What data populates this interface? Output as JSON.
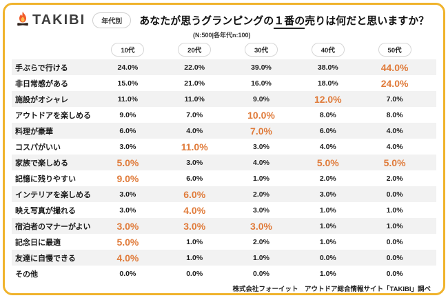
{
  "header": {
    "logo_text": "TAKIBI",
    "badge": "年代別",
    "title_prefix": "あなたが思うグランピングの",
    "title_underline": "１番の",
    "title_suffix": "売りは何だと思いますか？",
    "subtitle": "(N:500|各年代n:100)"
  },
  "columns": [
    "10代",
    "20代",
    "30代",
    "40代",
    "50代"
  ],
  "rows": [
    {
      "label": "手ぶらで行ける",
      "values": [
        "24.0%",
        "22.0%",
        "39.0%",
        "38.0%",
        "44.0%"
      ],
      "highlight": [
        false,
        false,
        false,
        false,
        true
      ]
    },
    {
      "label": "非日常感がある",
      "values": [
        "15.0%",
        "21.0%",
        "16.0%",
        "18.0%",
        "24.0%"
      ],
      "highlight": [
        false,
        false,
        false,
        false,
        true
      ]
    },
    {
      "label": "施設がオシャレ",
      "values": [
        "11.0%",
        "11.0%",
        "9.0%",
        "12.0%",
        "7.0%"
      ],
      "highlight": [
        false,
        false,
        false,
        true,
        false
      ]
    },
    {
      "label": "アウトドアを楽しめる",
      "values": [
        "9.0%",
        "7.0%",
        "10.0%",
        "8.0%",
        "8.0%"
      ],
      "highlight": [
        false,
        false,
        true,
        false,
        false
      ]
    },
    {
      "label": "料理が豪華",
      "values": [
        "6.0%",
        "4.0%",
        "7.0%",
        "6.0%",
        "4.0%"
      ],
      "highlight": [
        false,
        false,
        true,
        false,
        false
      ]
    },
    {
      "label": "コスパがいい",
      "values": [
        "3.0%",
        "11.0%",
        "3.0%",
        "4.0%",
        "4.0%"
      ],
      "highlight": [
        false,
        true,
        false,
        false,
        false
      ]
    },
    {
      "label": "家族で楽しめる",
      "values": [
        "5.0%",
        "3.0%",
        "4.0%",
        "5.0%",
        "5.0%"
      ],
      "highlight": [
        true,
        false,
        false,
        true,
        true
      ]
    },
    {
      "label": "記憶に残りやすい",
      "values": [
        "9.0%",
        "6.0%",
        "1.0%",
        "2.0%",
        "2.0%"
      ],
      "highlight": [
        true,
        false,
        false,
        false,
        false
      ]
    },
    {
      "label": "インテリアを楽しめる",
      "values": [
        "3.0%",
        "6.0%",
        "2.0%",
        "3.0%",
        "0.0%"
      ],
      "highlight": [
        false,
        true,
        false,
        false,
        false
      ]
    },
    {
      "label": "映え写真が撮れる",
      "values": [
        "3.0%",
        "4.0%",
        "3.0%",
        "1.0%",
        "1.0%"
      ],
      "highlight": [
        false,
        true,
        false,
        false,
        false
      ]
    },
    {
      "label": "宿泊者のマナーがよい",
      "values": [
        "3.0%",
        "3.0%",
        "3.0%",
        "1.0%",
        "1.0%"
      ],
      "highlight": [
        true,
        true,
        true,
        false,
        false
      ]
    },
    {
      "label": "記念日に最適",
      "values": [
        "5.0%",
        "1.0%",
        "2.0%",
        "1.0%",
        "0.0%"
      ],
      "highlight": [
        true,
        false,
        false,
        false,
        false
      ]
    },
    {
      "label": "友達に自慢できる",
      "values": [
        "4.0%",
        "1.0%",
        "1.0%",
        "0.0%",
        "0.0%"
      ],
      "highlight": [
        true,
        false,
        false,
        false,
        false
      ]
    },
    {
      "label": "その他",
      "values": [
        "0.0%",
        "0.0%",
        "0.0%",
        "1.0%",
        "0.0%"
      ],
      "highlight": [
        false,
        false,
        false,
        false,
        false
      ]
    }
  ],
  "footer": "株式会社フォーイット　アウトドア総合情報サイト「TAKIBI」調べ",
  "colors": {
    "accent": "#E07B3A",
    "border": "#F0B32C",
    "stripe": "#F2F2F2",
    "flame_outer": "#F15A29",
    "flame_inner": "#FDB94E",
    "log": "#40302A"
  },
  "chart_data": {
    "type": "table",
    "title": "あなたが思うグランピングの１番の売りは何だと思いますか？",
    "subtitle": "(N:500|各年代n:100)",
    "unit": "%",
    "categories": [
      "10代",
      "20代",
      "30代",
      "40代",
      "50代"
    ],
    "series": [
      {
        "name": "手ぶらで行ける",
        "values": [
          24.0,
          22.0,
          39.0,
          38.0,
          44.0
        ]
      },
      {
        "name": "非日常感がある",
        "values": [
          15.0,
          21.0,
          16.0,
          18.0,
          24.0
        ]
      },
      {
        "name": "施設がオシャレ",
        "values": [
          11.0,
          11.0,
          9.0,
          12.0,
          7.0
        ]
      },
      {
        "name": "アウトドアを楽しめる",
        "values": [
          9.0,
          7.0,
          10.0,
          8.0,
          8.0
        ]
      },
      {
        "name": "料理が豪華",
        "values": [
          6.0,
          4.0,
          7.0,
          6.0,
          4.0
        ]
      },
      {
        "name": "コスパがいい",
        "values": [
          3.0,
          11.0,
          3.0,
          4.0,
          4.0
        ]
      },
      {
        "name": "家族で楽しめる",
        "values": [
          5.0,
          3.0,
          4.0,
          5.0,
          5.0
        ]
      },
      {
        "name": "記憶に残りやすい",
        "values": [
          9.0,
          6.0,
          1.0,
          2.0,
          2.0
        ]
      },
      {
        "name": "インテリアを楽しめる",
        "values": [
          3.0,
          6.0,
          2.0,
          3.0,
          0.0
        ]
      },
      {
        "name": "映え写真が撮れる",
        "values": [
          3.0,
          4.0,
          3.0,
          1.0,
          1.0
        ]
      },
      {
        "name": "宿泊者のマナーがよい",
        "values": [
          3.0,
          3.0,
          3.0,
          1.0,
          1.0
        ]
      },
      {
        "name": "記念日に最適",
        "values": [
          5.0,
          1.0,
          2.0,
          1.0,
          0.0
        ]
      },
      {
        "name": "友達に自慢できる",
        "values": [
          4.0,
          1.0,
          1.0,
          0.0,
          0.0
        ]
      },
      {
        "name": "その他",
        "values": [
          0.0,
          0.0,
          0.0,
          1.0,
          0.0
        ]
      }
    ],
    "notes": "highlighted (orange) cells mark the age group(s) with the top share per row; table rows striped gray/white"
  }
}
